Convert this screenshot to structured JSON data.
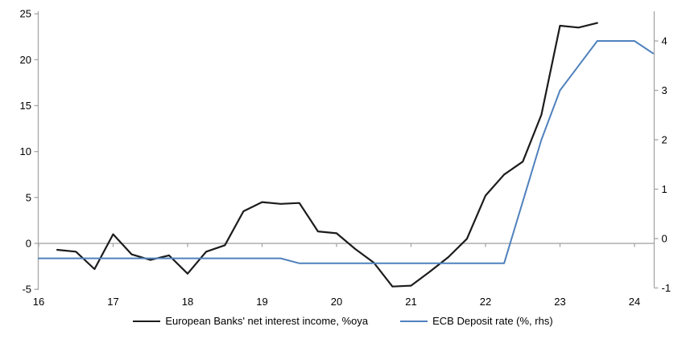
{
  "chart_data": {
    "type": "line",
    "title": "",
    "x_axis": {
      "ticks": [
        16,
        17,
        18,
        19,
        20,
        21,
        22,
        23,
        24
      ],
      "range": [
        16,
        24.25
      ],
      "grid": false
    },
    "left_axis": {
      "ticks": [
        25,
        20,
        15,
        10,
        5,
        0,
        -5
      ],
      "range": [
        -5,
        25
      ],
      "label": ""
    },
    "right_axis": {
      "ticks": [
        4,
        3,
        2,
        1,
        0,
        -1
      ],
      "range": [
        -1,
        4.6
      ],
      "label": ""
    },
    "legend_position": "bottom",
    "colors": {
      "axis_gray": "#a6a6a6",
      "series_black": "#1c1c1c",
      "series_blue": "#4f81bd"
    },
    "series": [
      {
        "name": "European Banks' net interest income, %oya",
        "axis": "left",
        "color": "#1c1c1c",
        "points": [
          [
            16.25,
            -0.7
          ],
          [
            16.5,
            -0.9
          ],
          [
            16.75,
            -2.8
          ],
          [
            17,
            1.0
          ],
          [
            17.25,
            -1.2
          ],
          [
            17.5,
            -1.8
          ],
          [
            17.75,
            -1.3
          ],
          [
            18,
            -3.3
          ],
          [
            18.25,
            -0.9
          ],
          [
            18.5,
            -0.2
          ],
          [
            18.75,
            3.5
          ],
          [
            19,
            4.5
          ],
          [
            19.25,
            4.3
          ],
          [
            19.5,
            4.4
          ],
          [
            19.75,
            1.3
          ],
          [
            20,
            1.1
          ],
          [
            20.25,
            -0.6
          ],
          [
            20.5,
            -2.1
          ],
          [
            20.75,
            -4.7
          ],
          [
            21,
            -4.6
          ],
          [
            21.25,
            -3.1
          ],
          [
            21.5,
            -1.5
          ],
          [
            21.75,
            0.5
          ],
          [
            22,
            5.2
          ],
          [
            22.25,
            7.5
          ],
          [
            22.5,
            8.9
          ],
          [
            22.75,
            14.0
          ],
          [
            23,
            23.7
          ],
          [
            23.25,
            23.5
          ],
          [
            23.5,
            24.0
          ]
        ]
      },
      {
        "name": "ECB Deposit rate (%, rhs)",
        "axis": "right",
        "color": "#4f81bd",
        "points": [
          [
            16,
            -0.4
          ],
          [
            16.25,
            -0.4
          ],
          [
            16.5,
            -0.4
          ],
          [
            16.75,
            -0.4
          ],
          [
            17,
            -0.4
          ],
          [
            17.25,
            -0.4
          ],
          [
            17.5,
            -0.4
          ],
          [
            17.75,
            -0.4
          ],
          [
            18,
            -0.4
          ],
          [
            18.25,
            -0.4
          ],
          [
            18.5,
            -0.4
          ],
          [
            18.75,
            -0.4
          ],
          [
            19,
            -0.4
          ],
          [
            19.25,
            -0.4
          ],
          [
            19.5,
            -0.5
          ],
          [
            19.75,
            -0.5
          ],
          [
            20,
            -0.5
          ],
          [
            20.25,
            -0.5
          ],
          [
            20.5,
            -0.5
          ],
          [
            20.75,
            -0.5
          ],
          [
            21,
            -0.5
          ],
          [
            21.25,
            -0.5
          ],
          [
            21.5,
            -0.5
          ],
          [
            21.75,
            -0.5
          ],
          [
            22,
            -0.5
          ],
          [
            22.25,
            -0.5
          ],
          [
            22.5,
            0.75
          ],
          [
            22.75,
            2.0
          ],
          [
            23,
            3.0
          ],
          [
            23.25,
            3.5
          ],
          [
            23.5,
            4.0
          ],
          [
            23.75,
            4.0
          ],
          [
            24,
            4.0
          ],
          [
            24.25,
            3.75
          ]
        ]
      }
    ]
  }
}
